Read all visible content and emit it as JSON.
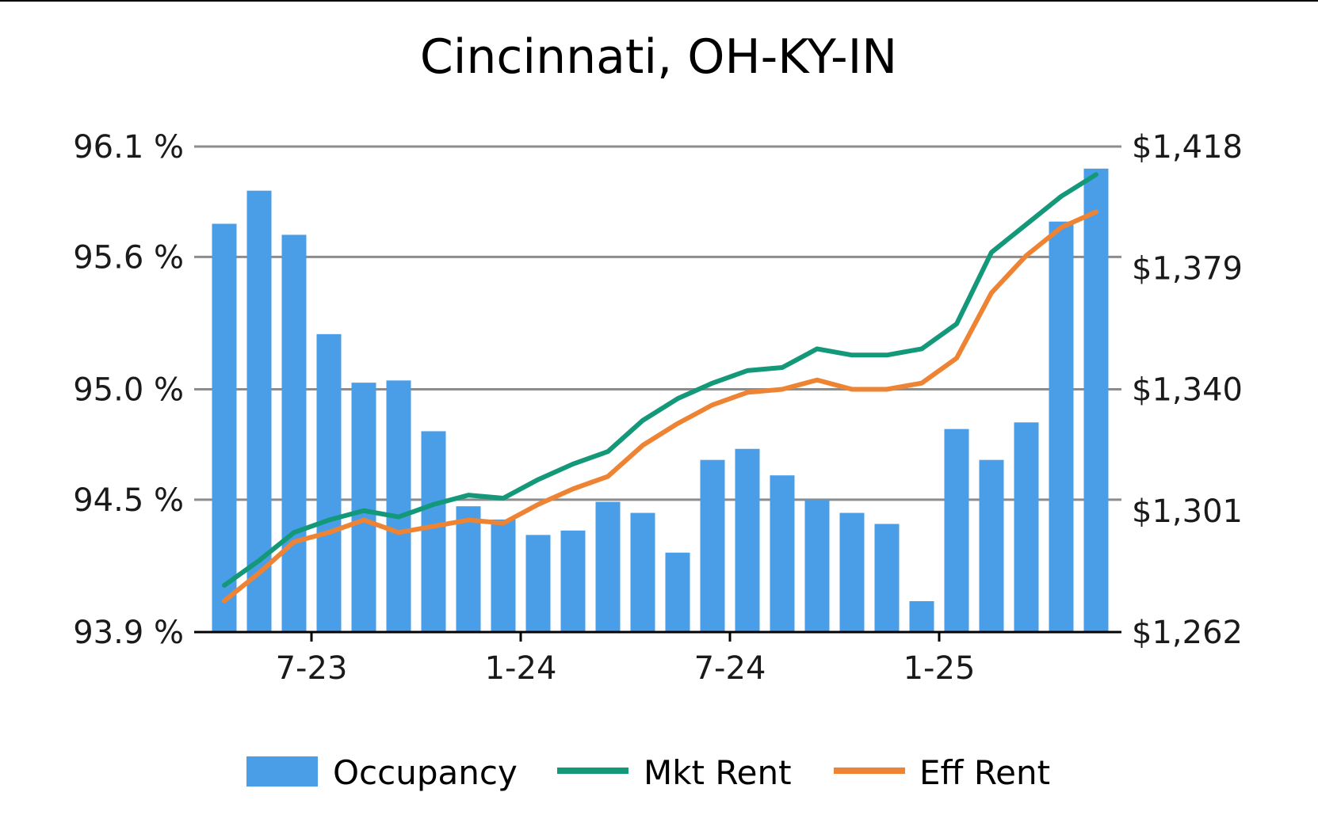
{
  "chart_data": {
    "type": "bar",
    "title": "Cincinnati, OH-KY-IN",
    "xlabel": "",
    "ylabel": "",
    "x_tick_labels": [
      "7-23",
      "1-24",
      "7-24",
      "1-25"
    ],
    "x_tick_after_index": [
      2,
      8,
      14,
      20
    ],
    "left_axis": {
      "ticks": [
        "96.1 %",
        "95.6 %",
        "95.0 %",
        "94.5 %",
        "93.9 %"
      ],
      "tick_values": [
        96.1,
        95.6,
        95.0,
        94.5,
        93.9
      ],
      "ylim": [
        93.9,
        96.1
      ]
    },
    "right_axis": {
      "ticks": [
        "$1,418",
        "$1,379",
        "$1,340",
        "$1,301",
        "$1,262"
      ],
      "tick_values": [
        1418,
        1379,
        1340,
        1301,
        1262
      ],
      "ylim": [
        1262,
        1418
      ]
    },
    "grid": true,
    "legend_position": "bottom",
    "series": [
      {
        "name": "Occupancy",
        "kind": "bar",
        "axis": "left",
        "color": "#4a9ee8",
        "values": [
          95.75,
          95.9,
          95.7,
          95.25,
          95.03,
          95.04,
          94.81,
          94.47,
          94.41,
          94.34,
          94.36,
          94.49,
          94.44,
          94.26,
          94.68,
          94.73,
          94.61,
          94.5,
          94.44,
          94.39,
          94.04,
          94.82,
          94.68,
          94.85,
          95.76,
          96.0
        ]
      },
      {
        "name": "Mkt Rent",
        "kind": "line",
        "axis": "right",
        "color": "#14987a",
        "values": [
          1277,
          1285,
          1294,
          1298,
          1301,
          1299,
          1303,
          1306,
          1305,
          1311,
          1316,
          1320,
          1330,
          1337,
          1342,
          1346,
          1347,
          1353,
          1351,
          1351,
          1353,
          1361,
          1384,
          1393,
          1402,
          1409
        ]
      },
      {
        "name": "Eff Rent",
        "kind": "line",
        "axis": "right",
        "color": "#ee8433",
        "values": [
          1272,
          1281,
          1291,
          1294,
          1298,
          1294,
          1296,
          1298,
          1297,
          1303,
          1308,
          1312,
          1322,
          1329,
          1335,
          1339,
          1340,
          1343,
          1340,
          1340,
          1342,
          1350,
          1371,
          1383,
          1392,
          1397
        ]
      }
    ]
  }
}
